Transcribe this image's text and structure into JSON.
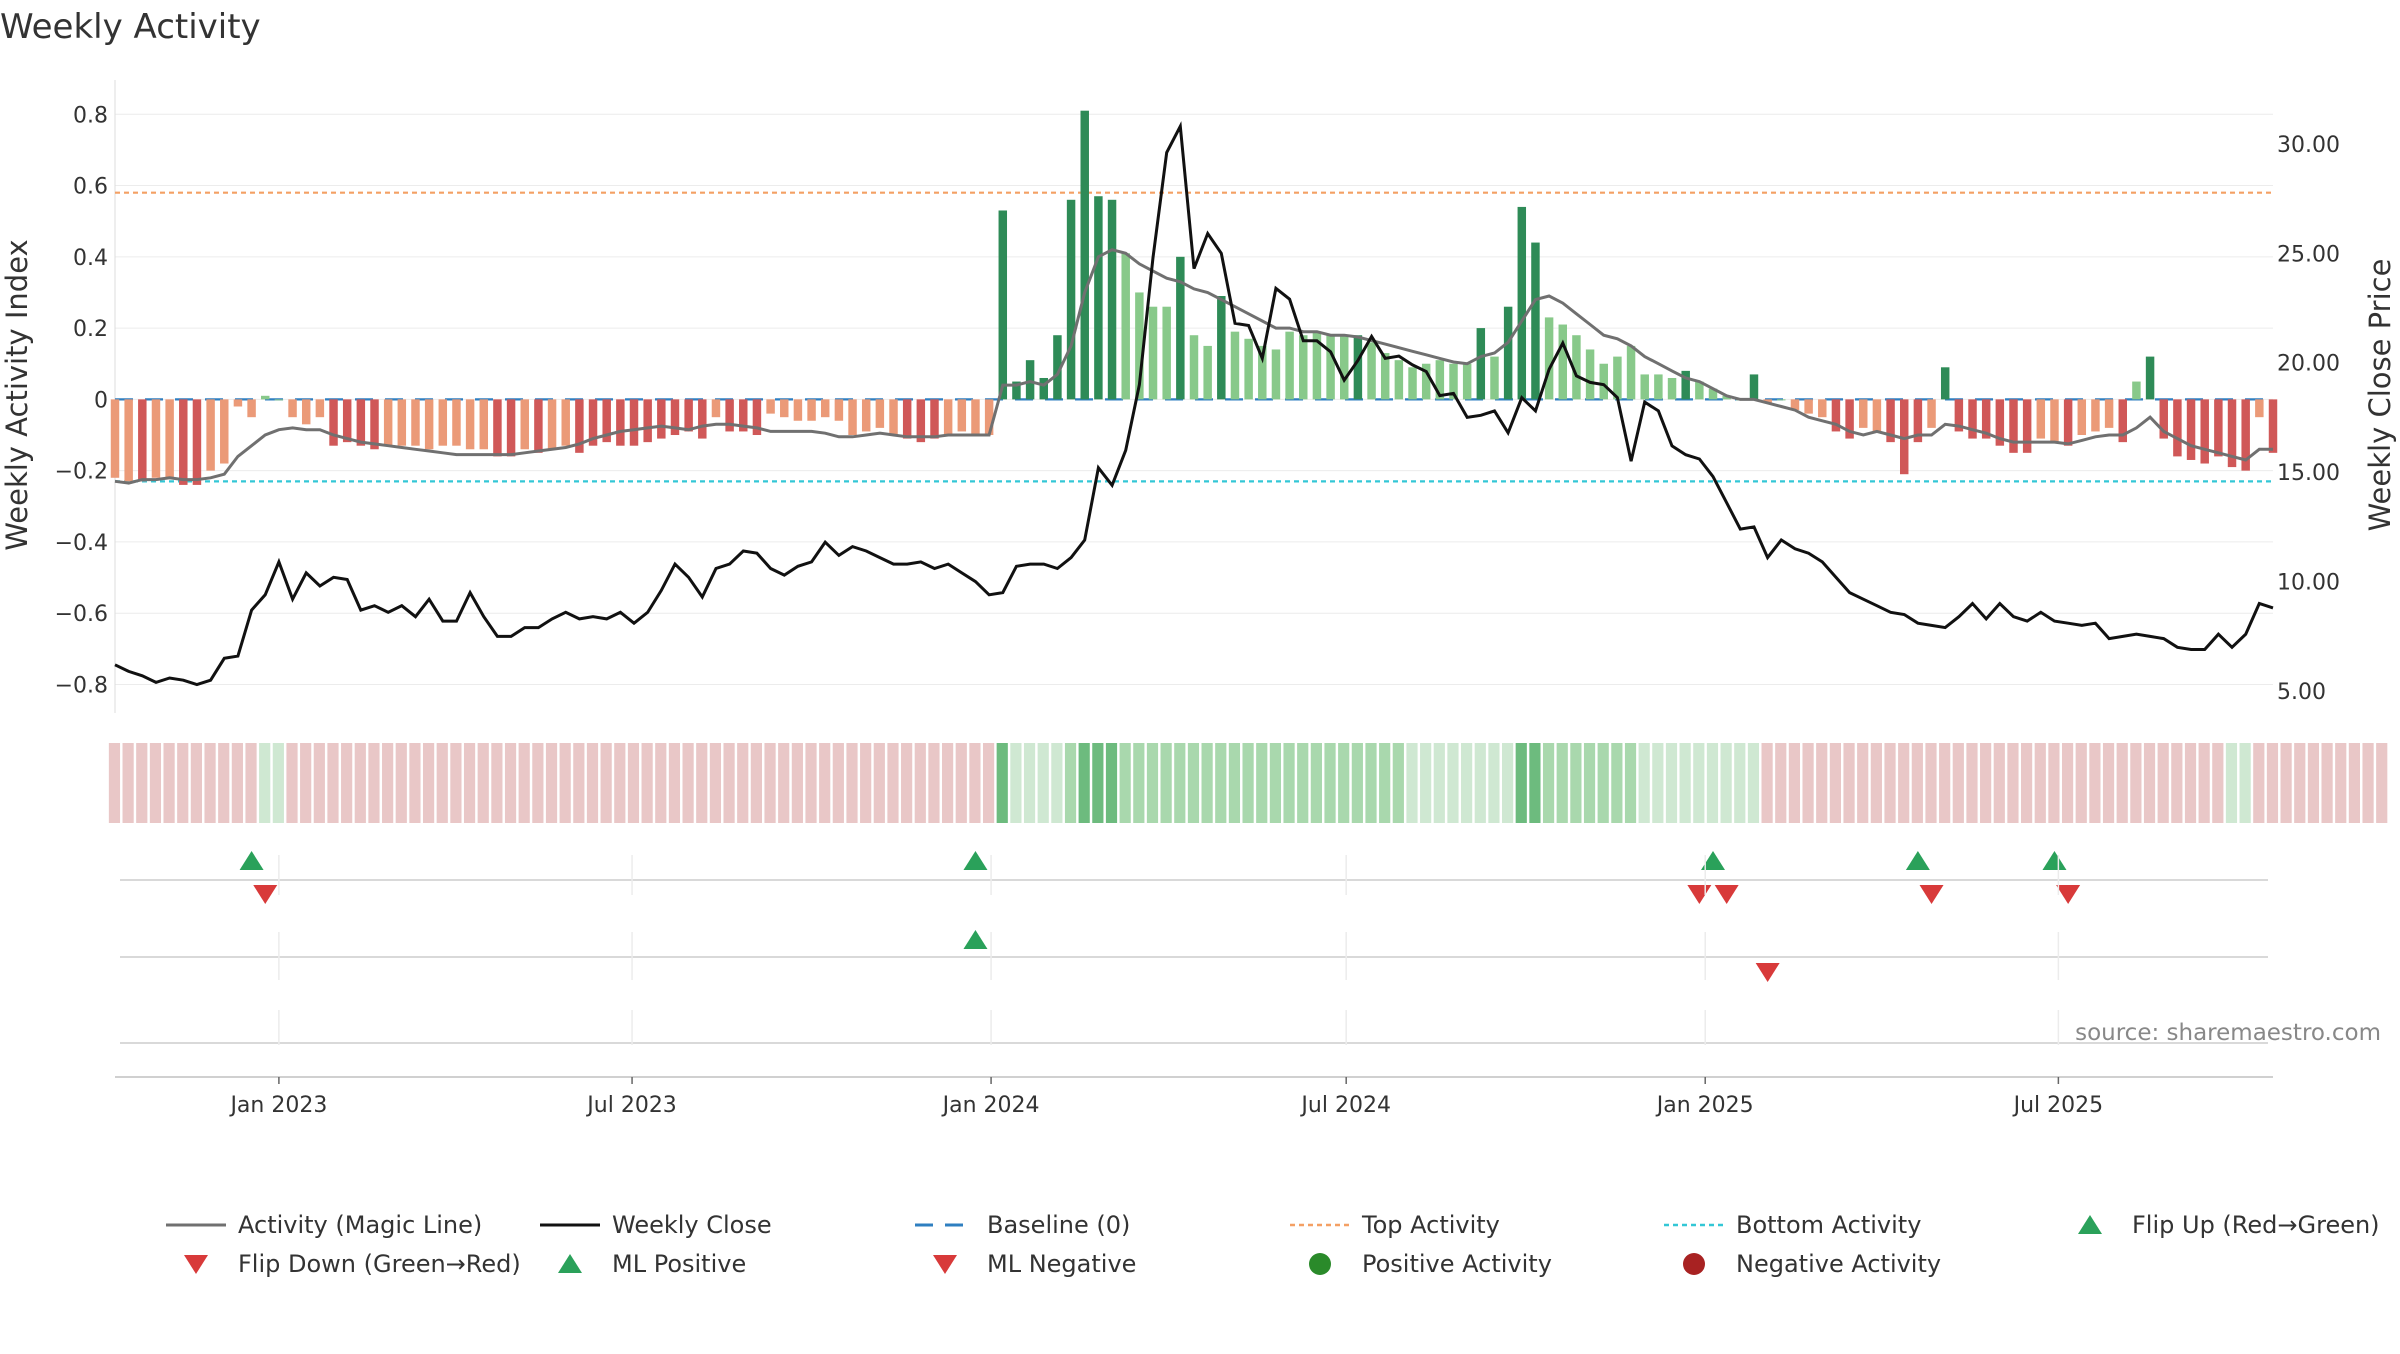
{
  "chart_data": {
    "type": "bar",
    "title": "Weekly Activity",
    "ylabel": "Weekly Activity Index",
    "ylabel_right": "Weekly Close Price",
    "ylim": [
      -0.88,
      0.84
    ],
    "ylim_right": [
      4.0,
      32.0
    ],
    "yticks": [
      "0.8",
      "0.6",
      "0.4",
      "0.2",
      "0",
      "−0.2",
      "−0.4",
      "−0.6",
      "−0.8"
    ],
    "yticks_right": [
      "30.00",
      "25.00",
      "20.00",
      "15.00",
      "10.00",
      "5.00"
    ],
    "x_tick_labels": [
      "Jan 2023",
      "Jul 2023",
      "Jan 2024",
      "Jul 2024",
      "Jan 2025",
      "Jul 2025"
    ],
    "x_start": "2022-10-09",
    "x_step_days": 7,
    "grid": true,
    "top_activity": 0.58,
    "bottom_activity": -0.23,
    "baseline": 0,
    "source": "source: sharemaestro.com",
    "legend_position": "bottom",
    "legend": [
      {
        "label": "Activity (Magic Line)",
        "kind": "line",
        "color": "#707070"
      },
      {
        "label": "Weekly Close",
        "kind": "line",
        "color": "#111111"
      },
      {
        "label": "Baseline (0)",
        "kind": "dash",
        "color": "#2f7fc0"
      },
      {
        "label": "Top Activity",
        "kind": "dot",
        "color": "#f4a064"
      },
      {
        "label": "Bottom Activity",
        "kind": "dot",
        "color": "#33c7d6"
      },
      {
        "label": "Flip Up (Red→Green)",
        "kind": "tri-up",
        "color": "#2aa15a"
      },
      {
        "label": "Flip Down (Green→Red)",
        "kind": "tri-down",
        "color": "#d83a3a"
      },
      {
        "label": "ML Positive",
        "kind": "tri-up",
        "color": "#2aa15a"
      },
      {
        "label": "ML Negative",
        "kind": "tri-down",
        "color": "#d83a3a"
      },
      {
        "label": "Positive Activity",
        "kind": "circle",
        "color": "#2a8a2a"
      },
      {
        "label": "Negative Activity",
        "kind": "circle",
        "color": "#a82222"
      }
    ],
    "colors": {
      "strong_green": "#2e8b57",
      "light_green": "#88c98a",
      "strong_red": "#d05858",
      "light_red": "#eb9a78",
      "magic_line": "#707070",
      "close_line": "#111111"
    },
    "series": [
      {
        "name": "Weekly Activity Index",
        "values": [
          -0.22,
          -0.23,
          -0.23,
          -0.22,
          -0.22,
          -0.24,
          -0.24,
          -0.2,
          -0.18,
          -0.02,
          -0.05,
          0.01,
          0,
          -0.05,
          -0.07,
          -0.05,
          -0.13,
          -0.12,
          -0.13,
          -0.14,
          -0.13,
          -0.13,
          -0.13,
          -0.14,
          -0.13,
          -0.13,
          -0.14,
          -0.14,
          -0.16,
          -0.16,
          -0.14,
          -0.15,
          -0.14,
          -0.13,
          -0.15,
          -0.13,
          -0.12,
          -0.13,
          -0.13,
          -0.12,
          -0.11,
          -0.1,
          -0.09,
          -0.11,
          -0.05,
          -0.09,
          -0.09,
          -0.1,
          -0.04,
          -0.05,
          -0.06,
          -0.06,
          -0.05,
          -0.06,
          -0.1,
          -0.09,
          -0.08,
          -0.1,
          -0.11,
          -0.12,
          -0.11,
          -0.1,
          -0.09,
          -0.1,
          -0.1,
          0.53,
          0.05,
          0.11,
          0.06,
          0.18,
          0.56,
          0.81,
          0.57,
          0.56,
          0.41,
          0.3,
          0.26,
          0.26,
          0.4,
          0.18,
          0.15,
          0.29,
          0.19,
          0.17,
          0.15,
          0.14,
          0.19,
          0.18,
          0.19,
          0.18,
          0.18,
          0.18,
          0.16,
          0.13,
          0.11,
          0.09,
          0.1,
          0.11,
          0.1,
          0.1,
          0.2,
          0.12,
          0.26,
          0.54,
          0.44,
          0.23,
          0.21,
          0.18,
          0.14,
          0.1,
          0.12,
          0.15,
          0.07,
          0.07,
          0.06,
          0.08,
          0.05,
          0.03,
          0.01,
          0,
          0.07,
          -0.01,
          0,
          -0.03,
          -0.04,
          -0.05,
          -0.09,
          -0.11,
          -0.08,
          -0.09,
          -0.12,
          -0.21,
          -0.12,
          -0.08,
          0.09,
          -0.09,
          -0.11,
          -0.11,
          -0.13,
          -0.15,
          -0.15,
          -0.11,
          -0.12,
          -0.13,
          -0.1,
          -0.09,
          -0.08,
          -0.12,
          0.05,
          0.12,
          -0.11,
          -0.16,
          -0.17,
          -0.18,
          -0.16,
          -0.19,
          -0.2,
          -0.05,
          -0.15
        ]
      },
      {
        "name": "Activity (Magic Line)",
        "values": [
          -0.23,
          -0.235,
          -0.225,
          -0.225,
          -0.22,
          -0.225,
          -0.225,
          -0.22,
          -0.21,
          -0.16,
          -0.13,
          -0.1,
          -0.085,
          -0.08,
          -0.085,
          -0.085,
          -0.1,
          -0.11,
          -0.12,
          -0.125,
          -0.13,
          -0.135,
          -0.14,
          -0.145,
          -0.15,
          -0.155,
          -0.155,
          -0.155,
          -0.155,
          -0.155,
          -0.15,
          -0.145,
          -0.14,
          -0.135,
          -0.125,
          -0.11,
          -0.1,
          -0.09,
          -0.085,
          -0.08,
          -0.075,
          -0.08,
          -0.085,
          -0.075,
          -0.07,
          -0.07,
          -0.075,
          -0.08,
          -0.09,
          -0.09,
          -0.09,
          -0.09,
          -0.095,
          -0.105,
          -0.105,
          -0.1,
          -0.095,
          -0.1,
          -0.105,
          -0.105,
          -0.105,
          -0.1,
          -0.1,
          -0.1,
          -0.1,
          0.04,
          0.04,
          0.05,
          0.04,
          0.07,
          0.15,
          0.3,
          0.4,
          0.42,
          0.41,
          0.38,
          0.36,
          0.34,
          0.33,
          0.31,
          0.3,
          0.28,
          0.26,
          0.24,
          0.22,
          0.2,
          0.2,
          0.19,
          0.19,
          0.18,
          0.18,
          0.175,
          0.165,
          0.155,
          0.145,
          0.135,
          0.125,
          0.115,
          0.105,
          0.1,
          0.12,
          0.13,
          0.16,
          0.22,
          0.28,
          0.29,
          0.27,
          0.24,
          0.21,
          0.18,
          0.17,
          0.15,
          0.12,
          0.1,
          0.08,
          0.06,
          0.05,
          0.03,
          0.01,
          0,
          0,
          -0.01,
          -0.02,
          -0.03,
          -0.05,
          -0.06,
          -0.07,
          -0.09,
          -0.1,
          -0.09,
          -0.1,
          -0.11,
          -0.1,
          -0.1,
          -0.07,
          -0.075,
          -0.085,
          -0.095,
          -0.11,
          -0.12,
          -0.12,
          -0.12,
          -0.12,
          -0.125,
          -0.115,
          -0.105,
          -0.1,
          -0.1,
          -0.08,
          -0.05,
          -0.09,
          -0.11,
          -0.13,
          -0.14,
          -0.15,
          -0.16,
          -0.17,
          -0.14,
          -0.14
        ]
      },
      {
        "name": "Weekly Close",
        "values": [
          6.2,
          5.9,
          5.7,
          5.4,
          5.6,
          5.5,
          5.3,
          5.5,
          6.5,
          6.6,
          8.7,
          9.4,
          10.9,
          9.2,
          10.4,
          9.8,
          10.2,
          10.1,
          8.7,
          8.9,
          8.6,
          8.9,
          8.4,
          9.2,
          8.2,
          8.2,
          9.5,
          8.4,
          7.5,
          7.5,
          7.9,
          7.9,
          8.3,
          8.6,
          8.3,
          8.4,
          8.3,
          8.6,
          8.1,
          8.6,
          9.6,
          10.8,
          10.2,
          9.3,
          10.6,
          10.8,
          11.4,
          11.3,
          10.6,
          10.3,
          10.7,
          10.9,
          11.8,
          11.2,
          11.6,
          11.4,
          11.1,
          10.8,
          10.8,
          10.9,
          10.6,
          10.8,
          10.4,
          10.0,
          9.4,
          9.5,
          10.7,
          10.8,
          10.8,
          10.6,
          11.1,
          11.9,
          15.2,
          14.4,
          16.0,
          19.0,
          24.8,
          29.6,
          30.8,
          24.3,
          25.9,
          25.0,
          21.8,
          21.7,
          20.2,
          23.4,
          22.9,
          21.0,
          21.0,
          20.5,
          19.2,
          20.1,
          21.2,
          20.2,
          20.3,
          19.9,
          19.6,
          18.5,
          18.6,
          17.5,
          17.6,
          17.8,
          16.8,
          18.4,
          17.8,
          19.7,
          20.9,
          19.4,
          19.1,
          19.0,
          18.4,
          15.5,
          18.2,
          17.8,
          16.2,
          15.8,
          15.6,
          14.8,
          13.6,
          12.4,
          12.5,
          11.1,
          11.9,
          11.5,
          11.3,
          10.9,
          10.2,
          9.5,
          9.2,
          8.9,
          8.6,
          8.5,
          8.1,
          8.0,
          7.9,
          8.4,
          9.0,
          8.3,
          9.0,
          8.4,
          8.2,
          8.6,
          8.2,
          8.1,
          8.0,
          8.1,
          7.4,
          7.5,
          7.6,
          7.5,
          7.4,
          7.0,
          6.9,
          6.9,
          7.6,
          7.0,
          7.6,
          9.0,
          8.8
        ]
      }
    ],
    "strip_intensity": [
      -1,
      -1,
      -1,
      -1,
      -1,
      -1,
      -1,
      -1,
      -1,
      -1,
      -1,
      1,
      1,
      -1,
      -1,
      -1,
      -1,
      -1,
      -1,
      -1,
      -1,
      -1,
      -1,
      -1,
      -1,
      -1,
      -1,
      -1,
      -1,
      -1,
      -1,
      -1,
      -1,
      -1,
      -1,
      -1,
      -1,
      -1,
      -1,
      -1,
      -1,
      -1,
      -1,
      -1,
      -1,
      -1,
      -1,
      -1,
      -1,
      -1,
      -1,
      -1,
      -1,
      -1,
      -1,
      -1,
      -1,
      -1,
      -1,
      -1,
      -1,
      -1,
      -1,
      -1,
      -1,
      3,
      1,
      1,
      1,
      1,
      2,
      3,
      3,
      3,
      2,
      2,
      2,
      2,
      2,
      2,
      2,
      2,
      2,
      2,
      2,
      2,
      2,
      2,
      2,
      2,
      2,
      2,
      2,
      2,
      2,
      1,
      1,
      1,
      1,
      1,
      1,
      1,
      1,
      3,
      3,
      2,
      2,
      2,
      2,
      2,
      2,
      2,
      1,
      1,
      1,
      1,
      1,
      1,
      1,
      1,
      1,
      -1,
      -1,
      -1,
      -1,
      -1,
      -1,
      -1,
      -1,
      -1,
      -1,
      -1,
      -1,
      -1,
      -1,
      -1,
      -1,
      -1,
      -1,
      -1,
      -1,
      -1,
      -1,
      -1,
      -1,
      -1,
      -1,
      -1,
      -1,
      -1,
      -1,
      -1,
      -1,
      -1,
      -1,
      1,
      1,
      -1,
      -1,
      -1,
      -1,
      -1,
      -1,
      -1,
      -1,
      -1,
      -1
    ],
    "flip_up": [
      "2022-12-18",
      "2023-12-24",
      "2025-01-05",
      "2025-04-20",
      "2025-06-29"
    ],
    "flip_down": [
      "2022-12-25",
      "2024-12-29",
      "2025-01-12",
      "2025-04-27",
      "2025-07-06"
    ],
    "ml_positive": [
      "2023-12-24"
    ],
    "ml_negative": [
      "2025-02-02"
    ]
  }
}
